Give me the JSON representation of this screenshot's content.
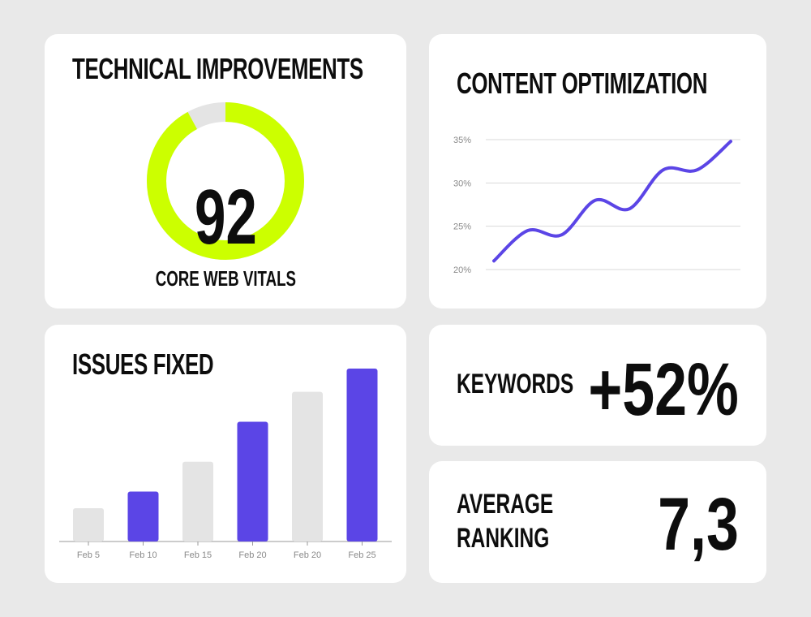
{
  "colors": {
    "accent_lime": "#ccff00",
    "accent_purple": "#5b45e6",
    "track_gray": "#e4e4e4",
    "gridline": "#d9d9d9"
  },
  "technical": {
    "title": "TECHNICAL IMPROVEMENTS",
    "subtitle": "CORE WEB VITALS",
    "chart_data": {
      "type": "donut",
      "value": 92,
      "max": 100,
      "center_label": "92"
    }
  },
  "content": {
    "title": "CONTENT OPTIMIZATION",
    "chart_data": {
      "type": "line",
      "y_ticks": [
        "35%",
        "30%",
        "25%",
        "20%"
      ],
      "ylim": [
        20,
        35
      ],
      "y": [
        21.0,
        24.5,
        24.0,
        28.0,
        27.0,
        31.5,
        31.5,
        34.8
      ]
    }
  },
  "issues": {
    "title": "ISSUES FIXED",
    "chart_data": {
      "type": "bar",
      "categories": [
        "Feb 5",
        "Feb 10",
        "Feb 15",
        "Feb 20",
        "Feb 20",
        "Feb 25"
      ],
      "values": [
        20,
        30,
        48,
        72,
        90,
        104
      ],
      "highlight": [
        false,
        true,
        false,
        true,
        false,
        true
      ]
    }
  },
  "keywords": {
    "label": "KEYWORDS",
    "value": "+52%"
  },
  "ranking": {
    "label_line1": "AVERAGE",
    "label_line2": "RANKING",
    "value": "7,3"
  }
}
